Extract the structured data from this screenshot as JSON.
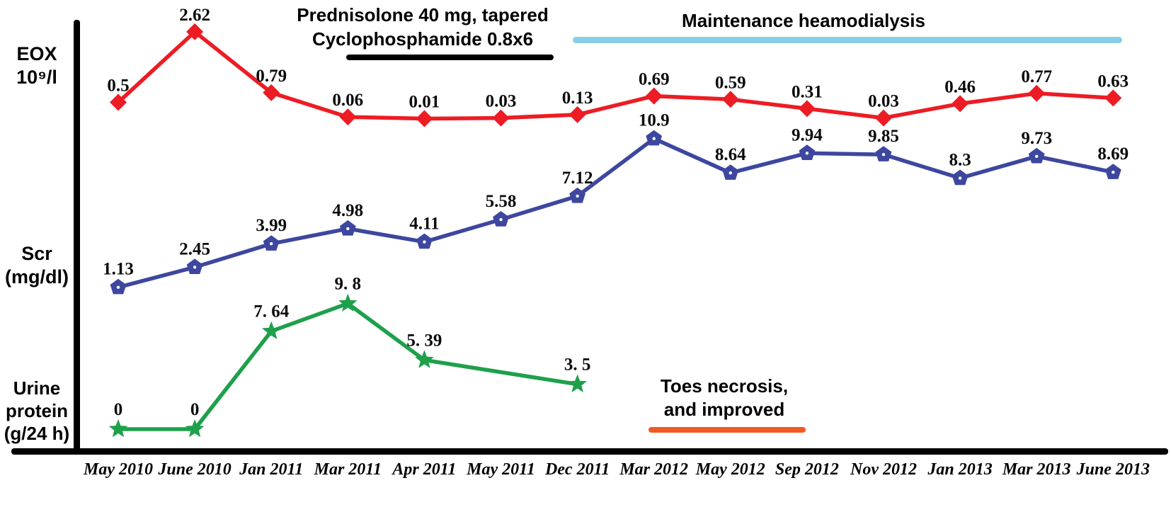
{
  "figure": {
    "axis_labels": {
      "eox": [
        "EOX",
        "10⁹/l"
      ],
      "scr": [
        "Scr",
        "(mg/dl)"
      ],
      "urine": [
        "Urine",
        "protein",
        "(g/24 h)"
      ]
    }
  },
  "chart_data": {
    "type": "line",
    "title": "",
    "x_categories": [
      "May 2010",
      "June 2010",
      "Jan 2011",
      "Mar 2011",
      "Apr 2011",
      "May 2011",
      "Dec 2011",
      "Mar 2012",
      "May 2012",
      "Sep 2012",
      "Nov 2012",
      "Jan 2013",
      "Mar 2013",
      "June 2013"
    ],
    "series": [
      {
        "name": "EOX 10⁹/l",
        "color": "#ed1c24",
        "marker": "diamond",
        "values": [
          0.5,
          2.62,
          0.79,
          0.06,
          0.01,
          0.03,
          0.13,
          0.69,
          0.59,
          0.31,
          0.03,
          0.46,
          0.77,
          0.63
        ],
        "point_labels": [
          "0.5",
          "2.62",
          "0.79",
          "0.06",
          "0.01",
          "0.03",
          "0.13",
          "0.69",
          "0.59",
          "0.31",
          "0.03",
          "0.46",
          "0.77",
          "0.63"
        ]
      },
      {
        "name": "Scr (mg/dl)",
        "color": "#3d479f",
        "marker": "pentagon",
        "values": [
          1.13,
          2.45,
          3.99,
          4.98,
          4.11,
          5.58,
          7.12,
          10.9,
          8.64,
          9.94,
          9.85,
          8.3,
          9.73,
          8.69
        ],
        "point_labels": [
          "1.13",
          "2.45",
          "3.99",
          "4.98",
          "4.11",
          "5.58",
          "7.12",
          "10.9",
          "8.64",
          "9.94",
          "9.85",
          "8.3",
          "9.73",
          "8.69"
        ]
      },
      {
        "name": "Urine protein (g/24 h)",
        "color": "#1ea04b",
        "marker": "star",
        "values": [
          0,
          0,
          7.64,
          9.8,
          5.39,
          null,
          3.5,
          null,
          null,
          null,
          null,
          null,
          null,
          null
        ],
        "point_labels": [
          "0",
          "0",
          "7. 64",
          "9. 8",
          "5. 39",
          null,
          "3. 5",
          null,
          null,
          null,
          null,
          null,
          null,
          null
        ]
      }
    ],
    "annotations": {
      "treatment": {
        "lines": [
          "Prednisolone 40 mg, tapered",
          "Cyclophosphamide 0.8x6"
        ],
        "bar_color": "#000000"
      },
      "dialysis": {
        "lines": [
          "Maintenance heamodialysis"
        ],
        "bar_color": "#87cfe8"
      },
      "toes": {
        "lines": [
          "Toes necrosis,",
          "and improved"
        ],
        "bar_color": "#f15a24"
      }
    },
    "layout_hints": {
      "grid": false,
      "legend": "left-margin text blocks",
      "x_axis": "category timeline"
    }
  }
}
